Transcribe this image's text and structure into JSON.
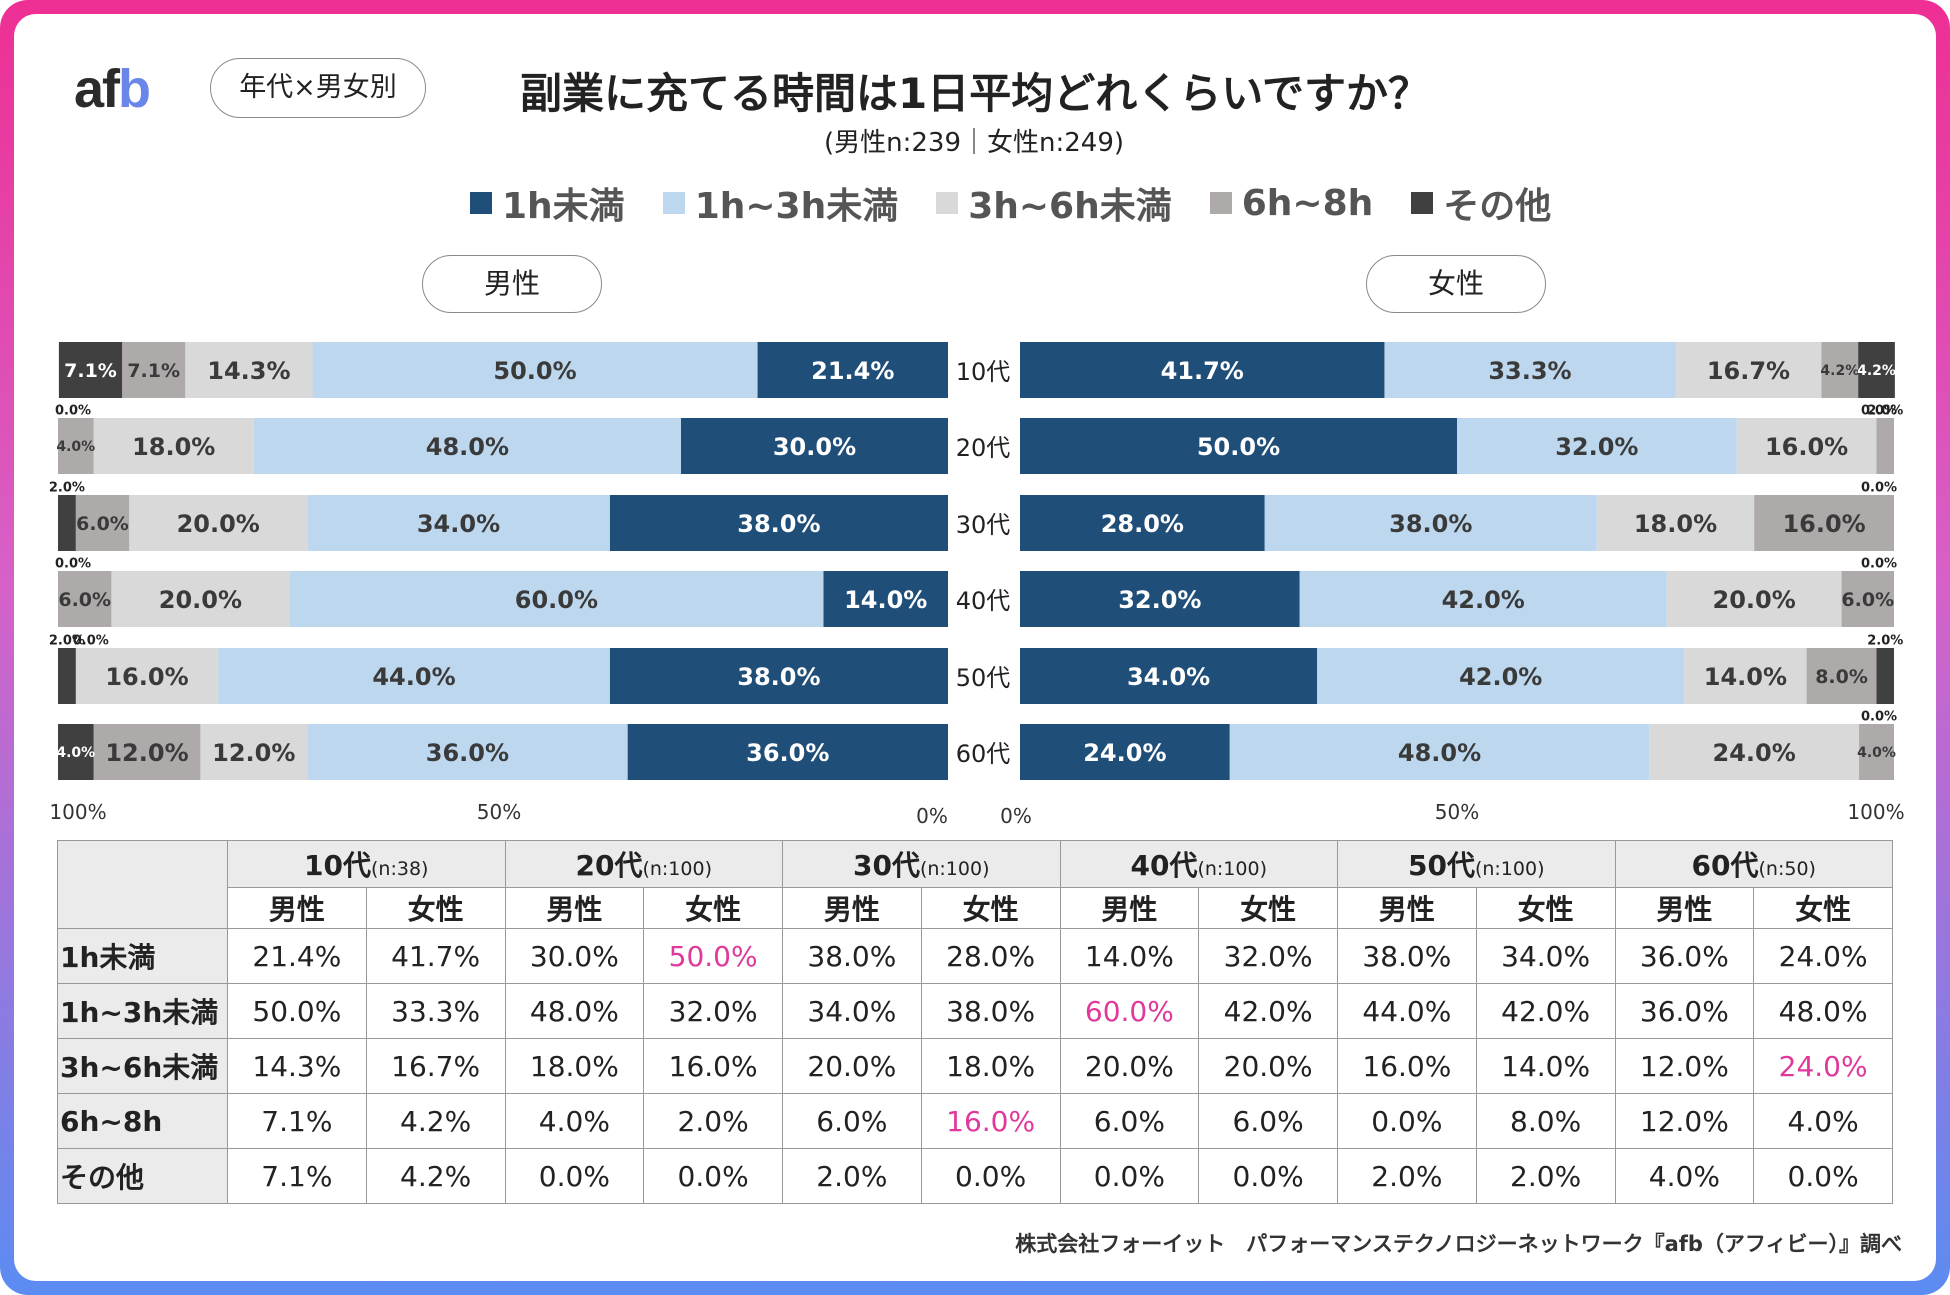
{
  "header": {
    "logo": {
      "a": "af",
      "b": "b"
    },
    "tag": "年代×男女別",
    "title": "副業に充てる時間は1日平均どれくらいですか？",
    "subtitle": "(男性n:239｜女性n:249)"
  },
  "panels": {
    "male_label": "男性",
    "female_label": "女性"
  },
  "colors": {
    "1h未満": "#1f4e79",
    "1h~3h未満": "#bdd7ee",
    "3h~6h未満": "#d9d9d9",
    "6h~8h": "#aeaaaa",
    "その他": "#404040",
    "highlight": "#e0399b"
  },
  "chart_data": {
    "type": "bar",
    "subtype": "horizontal-stacked-100-butterfly",
    "title": "副業に充てる時間は1日平均どれくらいですか？",
    "categories": [
      "10代",
      "20代",
      "30代",
      "40代",
      "50代",
      "60代"
    ],
    "legend": [
      "1h未満",
      "1h~3h未満",
      "3h~6h未満",
      "6h~8h",
      "その他"
    ],
    "legend_position": "top",
    "male_axis_ticks": [
      "100%",
      "50%",
      "0%"
    ],
    "female_axis_ticks": [
      "0%",
      "50%",
      "100%"
    ],
    "xlim": [
      0,
      100
    ],
    "series_male": [
      {
        "name": "1h未満",
        "values": [
          21.4,
          30.0,
          38.0,
          14.0,
          38.0,
          36.0
        ]
      },
      {
        "name": "1h~3h未満",
        "values": [
          50.0,
          48.0,
          34.0,
          60.0,
          44.0,
          36.0
        ]
      },
      {
        "name": "3h~6h未満",
        "values": [
          14.3,
          18.0,
          20.0,
          20.0,
          16.0,
          12.0
        ]
      },
      {
        "name": "6h~8h",
        "values": [
          7.1,
          4.0,
          6.0,
          6.0,
          0.0,
          12.0
        ]
      },
      {
        "name": "その他",
        "values": [
          7.1,
          0.0,
          2.0,
          0.0,
          2.0,
          4.0
        ]
      }
    ],
    "series_female": [
      {
        "name": "1h未満",
        "values": [
          41.7,
          50.0,
          28.0,
          32.0,
          34.0,
          24.0
        ]
      },
      {
        "name": "1h~3h未満",
        "values": [
          33.3,
          32.0,
          38.0,
          42.0,
          42.0,
          48.0
        ]
      },
      {
        "name": "3h~6h未満",
        "values": [
          16.7,
          16.0,
          18.0,
          20.0,
          14.0,
          24.0
        ]
      },
      {
        "name": "6h~8h",
        "values": [
          4.2,
          2.0,
          16.0,
          6.0,
          8.0,
          4.0
        ]
      },
      {
        "name": "その他",
        "values": [
          4.2,
          0.0,
          0.0,
          0.0,
          2.0,
          0.0
        ]
      }
    ]
  },
  "table": {
    "groups": [
      {
        "label": "10代",
        "n": "(n:38)"
      },
      {
        "label": "20代",
        "n": "(n:100)"
      },
      {
        "label": "30代",
        "n": "(n:100)"
      },
      {
        "label": "40代",
        "n": "(n:100)"
      },
      {
        "label": "50代",
        "n": "(n:100)"
      },
      {
        "label": "60代",
        "n": "(n:50)"
      }
    ],
    "male": "男性",
    "female": "女性",
    "rows": [
      {
        "label": "1h未満",
        "cells": [
          "21.4%",
          "41.7%",
          "30.0%",
          "50.0%",
          "38.0%",
          "28.0%",
          "14.0%",
          "32.0%",
          "38.0%",
          "34.0%",
          "36.0%",
          "24.0%"
        ],
        "highlight": [
          3
        ]
      },
      {
        "label": "1h~3h未満",
        "cells": [
          "50.0%",
          "33.3%",
          "48.0%",
          "32.0%",
          "34.0%",
          "38.0%",
          "60.0%",
          "42.0%",
          "44.0%",
          "42.0%",
          "36.0%",
          "48.0%"
        ],
        "highlight": [
          6
        ]
      },
      {
        "label": "3h~6h未満",
        "cells": [
          "14.3%",
          "16.7%",
          "18.0%",
          "16.0%",
          "20.0%",
          "18.0%",
          "20.0%",
          "20.0%",
          "16.0%",
          "14.0%",
          "12.0%",
          "24.0%"
        ],
        "highlight": [
          11
        ]
      },
      {
        "label": "6h~8h",
        "cells": [
          "7.1%",
          "4.2%",
          "4.0%",
          "2.0%",
          "6.0%",
          "16.0%",
          "6.0%",
          "6.0%",
          "0.0%",
          "8.0%",
          "12.0%",
          "4.0%"
        ],
        "highlight": [
          5
        ]
      },
      {
        "label": "その他",
        "cells": [
          "7.1%",
          "4.2%",
          "0.0%",
          "0.0%",
          "2.0%",
          "0.0%",
          "0.0%",
          "0.0%",
          "2.0%",
          "2.0%",
          "4.0%",
          "0.0%"
        ],
        "highlight": []
      }
    ]
  },
  "footer": "株式会社フォーイット　パフォーマンステクノロジーネットワーク『afb（アフィビー）』調べ"
}
